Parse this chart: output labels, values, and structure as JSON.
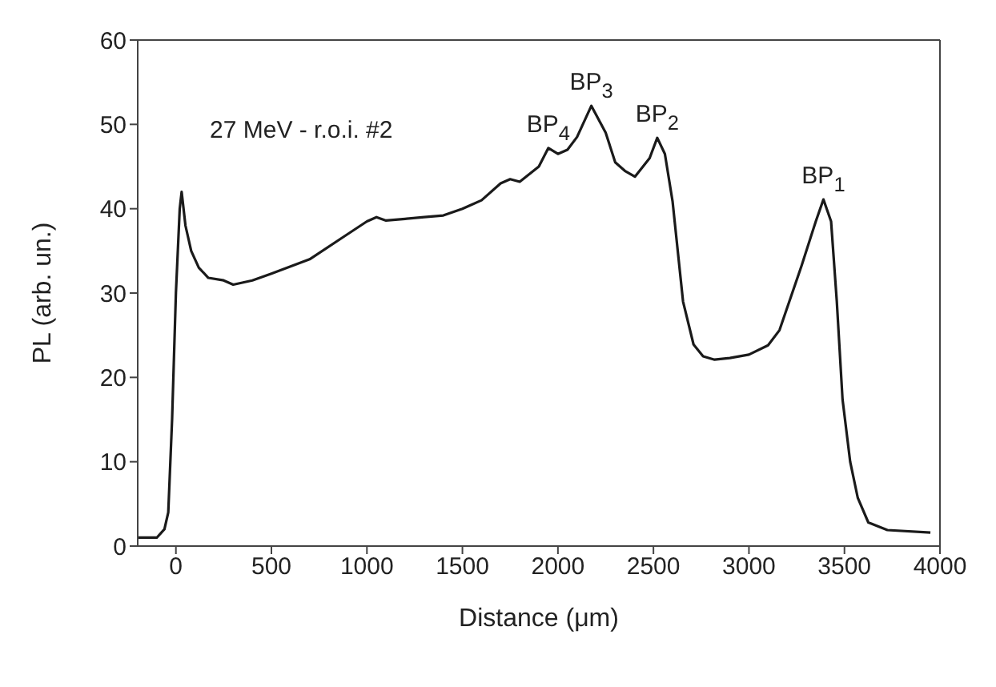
{
  "chart_data": {
    "type": "line",
    "xlabel": "Distance (μm)",
    "ylabel": "PL (arb. un.)",
    "xlim": [
      -200,
      4000
    ],
    "xticks": [
      0,
      500,
      1000,
      1500,
      2000,
      2500,
      3000,
      3500,
      4000
    ],
    "ylim": [
      0,
      60
    ],
    "yticks": [
      0,
      10,
      20,
      30,
      40,
      50,
      60
    ],
    "marker": "none",
    "line_style": "solid",
    "annotations": [
      "27 MeV - r.o.i. #2",
      {
        "text": "BP$_{4}$",
        "x": 1950,
        "y": 47.2
      },
      {
        "text": "BP$_{3}$",
        "x": 2175,
        "y": 52.2
      },
      {
        "text": "BP$_{2}$",
        "x": 2520,
        "y": 48.4
      },
      {
        "text": "BP$_{1}$",
        "x": 3390,
        "y": 41.1
      }
    ],
    "series": [
      {
        "color": "#1a1a1a",
        "x": [
          -200,
          -100,
          -60,
          -40,
          -20,
          0,
          20,
          30,
          50,
          80,
          120,
          170,
          250,
          300,
          400,
          500,
          700,
          900,
          1000,
          1050,
          1100,
          1200,
          1300,
          1400,
          1500,
          1600,
          1700,
          1750,
          1800,
          1900,
          1950,
          2000,
          2050,
          2100,
          2175,
          2250,
          2300,
          2350,
          2403,
          2480,
          2520,
          2560,
          2600,
          2655,
          2710,
          2760,
          2820,
          2900,
          3000,
          3100,
          3160,
          3275,
          3350,
          3390,
          3430,
          3460,
          3490,
          3530,
          3570,
          3625,
          3725,
          3950
        ],
        "values": [
          1,
          1,
          2,
          4,
          15,
          30,
          40,
          42,
          38,
          35,
          33,
          31.8,
          31.5,
          31,
          31.5,
          32.3,
          34,
          37,
          38.5,
          39,
          38.6,
          38.8,
          39,
          39.2,
          40,
          41,
          43,
          43.5,
          43.2,
          45,
          47.2,
          46.5,
          47,
          48.5,
          52.2,
          49,
          45.5,
          44.5,
          43.8,
          46,
          48.4,
          46.5,
          40.9,
          29,
          23.9,
          22.5,
          22.1,
          22.3,
          22.7,
          23.8,
          25.6,
          33.2,
          38.5,
          41.1,
          38.5,
          29,
          17.4,
          10,
          5.7,
          2.8,
          1.9,
          1.6
        ]
      }
    ]
  }
}
